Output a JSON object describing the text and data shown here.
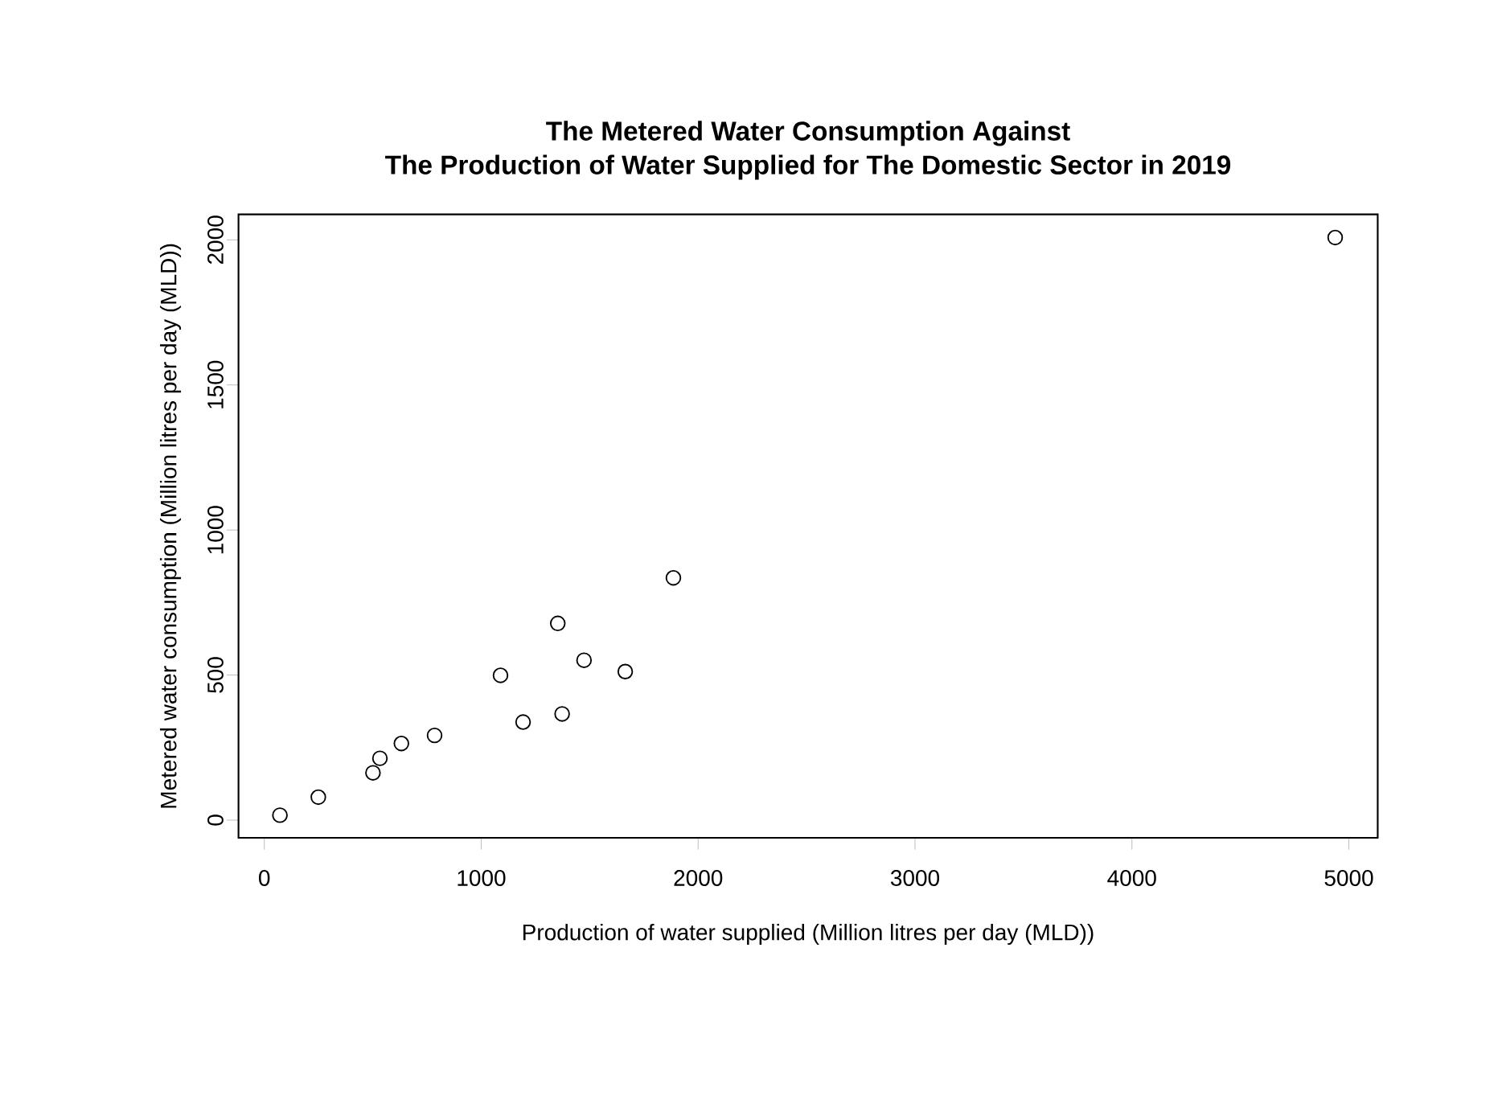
{
  "chart_data": {
    "type": "scatter",
    "title": "The Metered Water Consumption Against",
    "subtitle": "The Production of Water Supplied for The Domestic Sector in 2019",
    "xlabel": "Production of water supplied (Million litres per day (MLD))",
    "ylabel": "Metered water consumption (Million litres per day (MLD))",
    "x": [
      72,
      249,
      501,
      533,
      632,
      785,
      1089,
      1193,
      1353,
      1373,
      1474,
      1664,
      1886,
      4937
    ],
    "values": [
      17,
      79,
      163,
      213,
      264,
      292,
      499,
      338,
      678,
      366,
      551,
      512,
      835,
      2008
    ],
    "color": "#000000",
    "marker": "circle",
    "xlim": [
      -119,
      5133
    ],
    "ylim": [
      -61,
      2088
    ],
    "xticks": [
      0,
      1000,
      2000,
      3000,
      4000,
      5000
    ],
    "yticks": [
      0,
      500,
      1000,
      1500,
      2000
    ],
    "grid": false
  }
}
